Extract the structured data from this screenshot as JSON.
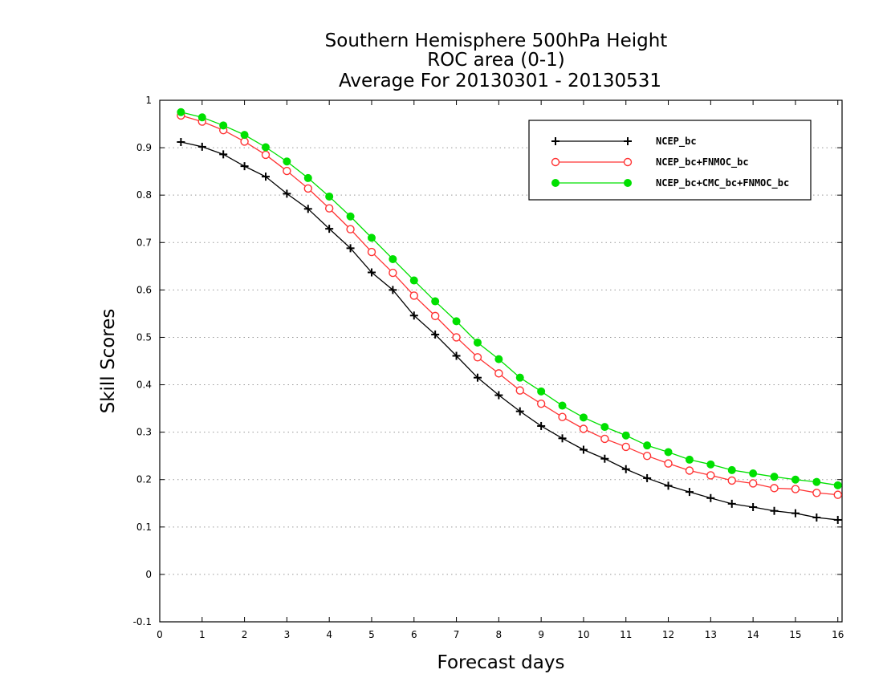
{
  "chart_data": {
    "type": "line",
    "title": [
      "Southern Hemisphere 500hPa Height",
      "ROC area (0-1)",
      "Average For 20130301 - 20130531"
    ],
    "xlabel": "Forecast days",
    "ylabel": "Skill Scores",
    "xlim": [
      0,
      16.1
    ],
    "ylim": [
      -0.1,
      1
    ],
    "xticks": [
      "0",
      "1",
      "2",
      "3",
      "4",
      "5",
      "6",
      "7",
      "8",
      "9",
      "10",
      "11",
      "12",
      "13",
      "14",
      "15",
      "16"
    ],
    "yticks": [
      "-0.1",
      "0",
      "0.1",
      "0.2",
      "0.3",
      "0.4",
      "0.5",
      "0.6",
      "0.7",
      "0.8",
      "0.9",
      "1"
    ],
    "grid": "horizontal-dotted",
    "legend_position": "top-right",
    "x": [
      0.5,
      1,
      1.5,
      2,
      2.5,
      3,
      3.5,
      4,
      4.5,
      5,
      5.5,
      6,
      6.5,
      7,
      7.5,
      8,
      8.5,
      9,
      9.5,
      10,
      10.5,
      11,
      11.5,
      12,
      12.5,
      13,
      13.5,
      14,
      14.5,
      15,
      15.5,
      16
    ],
    "series": [
      {
        "name": "NCEP_bc",
        "color": "#000000",
        "marker": "plus",
        "values": [
          0.912,
          0.902,
          0.886,
          0.861,
          0.839,
          0.803,
          0.771,
          0.729,
          0.688,
          0.637,
          0.6,
          0.546,
          0.506,
          0.461,
          0.415,
          0.378,
          0.344,
          0.313,
          0.287,
          0.263,
          0.244,
          0.222,
          0.203,
          0.187,
          0.174,
          0.161,
          0.149,
          0.142,
          0.134,
          0.129,
          0.12,
          0.115
        ]
      },
      {
        "name": "NCEP_bc+FNMOC_bc",
        "color": "#ff3333",
        "marker": "open-circle",
        "values": [
          0.968,
          0.955,
          0.937,
          0.913,
          0.885,
          0.851,
          0.814,
          0.772,
          0.728,
          0.68,
          0.636,
          0.588,
          0.545,
          0.5,
          0.458,
          0.424,
          0.388,
          0.36,
          0.332,
          0.307,
          0.286,
          0.269,
          0.25,
          0.234,
          0.219,
          0.209,
          0.198,
          0.192,
          0.182,
          0.18,
          0.172,
          0.168
        ]
      },
      {
        "name": "NCEP_bc+CMC_bc+FNMOC_bc",
        "color": "#00e000",
        "marker": "filled-circle",
        "values": [
          0.975,
          0.964,
          0.947,
          0.927,
          0.901,
          0.871,
          0.836,
          0.797,
          0.755,
          0.71,
          0.665,
          0.62,
          0.576,
          0.534,
          0.489,
          0.454,
          0.415,
          0.386,
          0.356,
          0.331,
          0.311,
          0.293,
          0.272,
          0.258,
          0.242,
          0.232,
          0.22,
          0.213,
          0.206,
          0.2,
          0.195,
          0.188
        ]
      }
    ]
  }
}
